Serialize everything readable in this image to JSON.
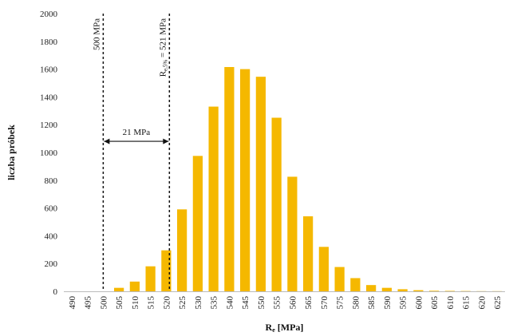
{
  "chart_data": {
    "type": "bar",
    "categories": [
      "490",
      "495",
      "500",
      "505",
      "510",
      "515",
      "520",
      "525",
      "530",
      "535",
      "540",
      "545",
      "550",
      "555",
      "560",
      "565",
      "570",
      "575",
      "580",
      "585",
      "590",
      "595",
      "600",
      "605",
      "610",
      "615",
      "620",
      "625"
    ],
    "values": [
      0,
      0,
      0,
      25,
      70,
      180,
      295,
      590,
      975,
      1330,
      1615,
      1600,
      1545,
      1250,
      825,
      540,
      320,
      175,
      95,
      45,
      25,
      15,
      8,
      4,
      3,
      2,
      1,
      1
    ],
    "xlabel_main": "R",
    "xlabel_sub": "e",
    "xlabel_unit": " [MPa]",
    "ylabel": "liczba próbek",
    "ylim": [
      0,
      2000
    ],
    "yticks": [
      0,
      200,
      400,
      600,
      800,
      1000,
      1200,
      1400,
      1600,
      1800,
      2000
    ],
    "grid": false,
    "bar_color": "#f5b800",
    "annotations": {
      "line1_value": 500,
      "line1_label": "500 MPa",
      "line2_value": 521,
      "line2_label_main": "R",
      "line2_label_sub": "e,5%",
      "line2_label_rest": " = 521 MPa",
      "span_label": "21 MPa",
      "span_y": 1080
    }
  }
}
